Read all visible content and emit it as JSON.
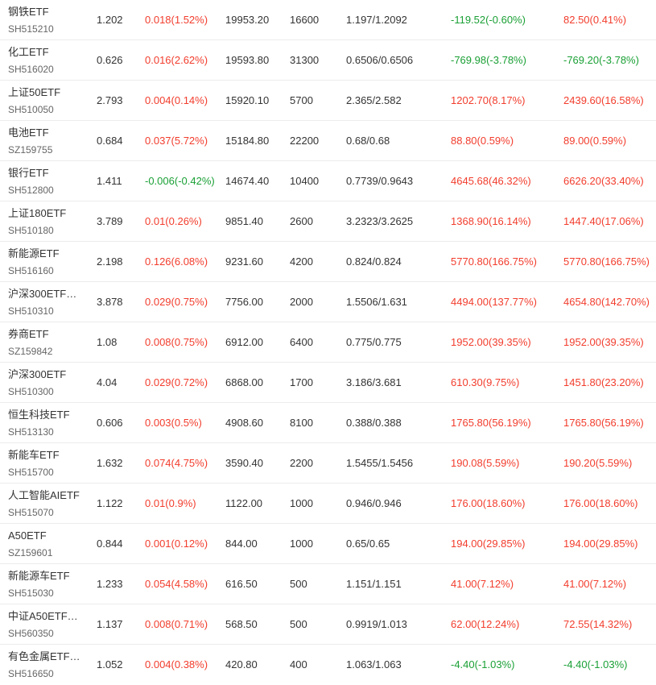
{
  "colors": {
    "up": "#f23d2d",
    "down": "#1aa035",
    "text": "#333333",
    "subtext": "#666666",
    "divider": "#ececec"
  },
  "rows": [
    {
      "name": "钢铁ETF",
      "code": "SH515210",
      "price": "1.202",
      "change": "0.018(1.52%)",
      "change_dir": "up",
      "value": "19953.20",
      "shares": "16600",
      "cost": "1.197/1.2092",
      "pnl": "-119.52(-0.60%)",
      "pnl_dir": "down",
      "total": "82.50(0.41%)",
      "total_dir": "up"
    },
    {
      "name": "化工ETF",
      "code": "SH516020",
      "price": "0.626",
      "change": "0.016(2.62%)",
      "change_dir": "up",
      "value": "19593.80",
      "shares": "31300",
      "cost": "0.6506/0.6506",
      "pnl": "-769.98(-3.78%)",
      "pnl_dir": "down",
      "total": "-769.20(-3.78%)",
      "total_dir": "down"
    },
    {
      "name": "上证50ETF",
      "code": "SH510050",
      "price": "2.793",
      "change": "0.004(0.14%)",
      "change_dir": "up",
      "value": "15920.10",
      "shares": "5700",
      "cost": "2.365/2.582",
      "pnl": "1202.70(8.17%)",
      "pnl_dir": "up",
      "total": "2439.60(16.58%)",
      "total_dir": "up"
    },
    {
      "name": "电池ETF",
      "code": "SZ159755",
      "price": "0.684",
      "change": "0.037(5.72%)",
      "change_dir": "up",
      "value": "15184.80",
      "shares": "22200",
      "cost": "0.68/0.68",
      "pnl": "88.80(0.59%)",
      "pnl_dir": "up",
      "total": "89.00(0.59%)",
      "total_dir": "up"
    },
    {
      "name": "银行ETF",
      "code": "SH512800",
      "price": "1.411",
      "change": "-0.006(-0.42%)",
      "change_dir": "down",
      "value": "14674.40",
      "shares": "10400",
      "cost": "0.7739/0.9643",
      "pnl": "4645.68(46.32%)",
      "pnl_dir": "up",
      "total": "6626.20(33.40%)",
      "total_dir": "up"
    },
    {
      "name": "上证180ETF",
      "code": "SH510180",
      "price": "3.789",
      "change": "0.01(0.26%)",
      "change_dir": "up",
      "value": "9851.40",
      "shares": "2600",
      "cost": "3.2323/3.2625",
      "pnl": "1368.90(16.14%)",
      "pnl_dir": "up",
      "total": "1447.40(17.06%)",
      "total_dir": "up"
    },
    {
      "name": "新能源ETF",
      "code": "SH516160",
      "price": "2.198",
      "change": "0.126(6.08%)",
      "change_dir": "up",
      "value": "9231.60",
      "shares": "4200",
      "cost": "0.824/0.824",
      "pnl": "5770.80(166.75%)",
      "pnl_dir": "up",
      "total": "5770.80(166.75%)",
      "total_dir": "up"
    },
    {
      "name": "沪深300ETF…",
      "code": "SH510310",
      "price": "3.878",
      "change": "0.029(0.75%)",
      "change_dir": "up",
      "value": "7756.00",
      "shares": "2000",
      "cost": "1.5506/1.631",
      "pnl": "4494.00(137.77%)",
      "pnl_dir": "up",
      "total": "4654.80(142.70%)",
      "total_dir": "up"
    },
    {
      "name": "券商ETF",
      "code": "SZ159842",
      "price": "1.08",
      "change": "0.008(0.75%)",
      "change_dir": "up",
      "value": "6912.00",
      "shares": "6400",
      "cost": "0.775/0.775",
      "pnl": "1952.00(39.35%)",
      "pnl_dir": "up",
      "total": "1952.00(39.35%)",
      "total_dir": "up"
    },
    {
      "name": "沪深300ETF",
      "code": "SH510300",
      "price": "4.04",
      "change": "0.029(0.72%)",
      "change_dir": "up",
      "value": "6868.00",
      "shares": "1700",
      "cost": "3.186/3.681",
      "pnl": "610.30(9.75%)",
      "pnl_dir": "up",
      "total": "1451.80(23.20%)",
      "total_dir": "up"
    },
    {
      "name": "恒生科技ETF",
      "code": "SH513130",
      "price": "0.606",
      "change": "0.003(0.5%)",
      "change_dir": "up",
      "value": "4908.60",
      "shares": "8100",
      "cost": "0.388/0.388",
      "pnl": "1765.80(56.19%)",
      "pnl_dir": "up",
      "total": "1765.80(56.19%)",
      "total_dir": "up"
    },
    {
      "name": "新能车ETF",
      "code": "SH515700",
      "price": "1.632",
      "change": "0.074(4.75%)",
      "change_dir": "up",
      "value": "3590.40",
      "shares": "2200",
      "cost": "1.5455/1.5456",
      "pnl": "190.08(5.59%)",
      "pnl_dir": "up",
      "total": "190.20(5.59%)",
      "total_dir": "up"
    },
    {
      "name": "人工智能AIETF",
      "code": "SH515070",
      "price": "1.122",
      "change": "0.01(0.9%)",
      "change_dir": "up",
      "value": "1122.00",
      "shares": "1000",
      "cost": "0.946/0.946",
      "pnl": "176.00(18.60%)",
      "pnl_dir": "up",
      "total": "176.00(18.60%)",
      "total_dir": "up"
    },
    {
      "name": "A50ETF",
      "code": "SZ159601",
      "price": "0.844",
      "change": "0.001(0.12%)",
      "change_dir": "up",
      "value": "844.00",
      "shares": "1000",
      "cost": "0.65/0.65",
      "pnl": "194.00(29.85%)",
      "pnl_dir": "up",
      "total": "194.00(29.85%)",
      "total_dir": "up"
    },
    {
      "name": "新能源车ETF",
      "code": "SH515030",
      "price": "1.233",
      "change": "0.054(4.58%)",
      "change_dir": "up",
      "value": "616.50",
      "shares": "500",
      "cost": "1.151/1.151",
      "pnl": "41.00(7.12%)",
      "pnl_dir": "up",
      "total": "41.00(7.12%)",
      "total_dir": "up"
    },
    {
      "name": "中证A50ETF…",
      "code": "SH560350",
      "price": "1.137",
      "change": "0.008(0.71%)",
      "change_dir": "up",
      "value": "568.50",
      "shares": "500",
      "cost": "0.9919/1.013",
      "pnl": "62.00(12.24%)",
      "pnl_dir": "up",
      "total": "72.55(14.32%)",
      "total_dir": "up"
    },
    {
      "name": "有色金属ETF…",
      "code": "SH516650",
      "price": "1.052",
      "change": "0.004(0.38%)",
      "change_dir": "up",
      "value": "420.80",
      "shares": "400",
      "cost": "1.063/1.063",
      "pnl": "-4.40(-1.03%)",
      "pnl_dir": "down",
      "total": "-4.40(-1.03%)",
      "total_dir": "down"
    }
  ]
}
